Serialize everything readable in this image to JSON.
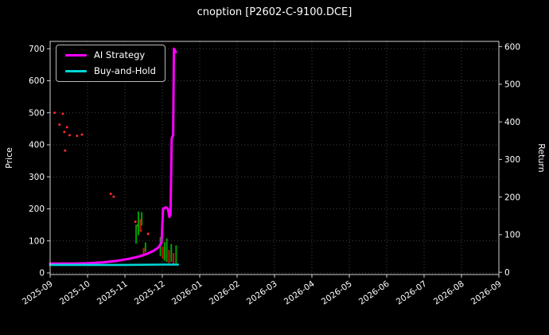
{
  "chart_data": {
    "type": "line",
    "title": "cnoption [P2602-C-9100.DCE]",
    "colors": {
      "background": "#000000",
      "text": "#ffffff",
      "grid": "#555555",
      "spine": "#cfcfcf",
      "signal_dot": "#ff2a2a"
    },
    "x_axis": {
      "range": [
        0,
        12
      ],
      "ticks": [
        {
          "v": 0,
          "label": "2025-09"
        },
        {
          "v": 1,
          "label": "2025-10"
        },
        {
          "v": 2,
          "label": "2025-11"
        },
        {
          "v": 3,
          "label": "2025-12"
        },
        {
          "v": 4,
          "label": "2026-01"
        },
        {
          "v": 5,
          "label": "2026-02"
        },
        {
          "v": 6,
          "label": "2026-03"
        },
        {
          "v": 7,
          "label": "2026-04"
        },
        {
          "v": 8,
          "label": "2026-05"
        },
        {
          "v": 9,
          "label": "2026-06"
        },
        {
          "v": 10,
          "label": "2026-07"
        },
        {
          "v": 11,
          "label": "2026-08"
        },
        {
          "v": 12,
          "label": "2026-09"
        }
      ]
    },
    "left_axis": {
      "label": "Price",
      "range": [
        -5,
        723
      ],
      "ticks": [
        0,
        100,
        200,
        300,
        400,
        500,
        600,
        700
      ]
    },
    "right_axis": {
      "label": "Return",
      "range": [
        -6,
        614
      ],
      "ticks": [
        0,
        100,
        200,
        300,
        400,
        500,
        600
      ]
    },
    "series": [
      {
        "name": "AI Strategy",
        "color": "#ff00ff",
        "width": 3,
        "axis": "left",
        "points": [
          [
            0,
            29
          ],
          [
            0.6,
            29
          ],
          [
            1.0,
            30
          ],
          [
            1.4,
            33
          ],
          [
            1.8,
            38
          ],
          [
            2.1,
            44
          ],
          [
            2.4,
            52
          ],
          [
            2.6,
            60
          ],
          [
            2.75,
            68
          ],
          [
            2.9,
            80
          ],
          [
            2.98,
            95
          ],
          [
            3.02,
            200
          ],
          [
            3.1,
            205
          ],
          [
            3.15,
            200
          ],
          [
            3.19,
            175
          ],
          [
            3.22,
            182
          ],
          [
            3.25,
            420
          ],
          [
            3.29,
            430
          ],
          [
            3.31,
            700
          ],
          [
            3.36,
            690
          ]
        ]
      },
      {
        "name": "Buy-and-Hold",
        "color": "#00d8d8",
        "width": 2.6,
        "axis": "left",
        "points": [
          [
            0,
            25
          ],
          [
            1.0,
            25
          ],
          [
            2.0,
            25
          ],
          [
            3.0,
            26
          ],
          [
            3.42,
            26
          ]
        ]
      }
    ],
    "markers": {
      "red_dots": [
        [
          0.12,
          500
        ],
        [
          0.25,
          463
        ],
        [
          0.34,
          497
        ],
        [
          0.38,
          440
        ],
        [
          0.45,
          455
        ],
        [
          0.52,
          430
        ],
        [
          0.4,
          382
        ],
        [
          0.72,
          428
        ],
        [
          0.85,
          432
        ],
        [
          1.62,
          247
        ],
        [
          1.7,
          238
        ],
        [
          2.28,
          160
        ],
        [
          2.34,
          148
        ],
        [
          2.42,
          132
        ],
        [
          2.62,
          122
        ]
      ],
      "bars": [
        {
          "x": 2.3,
          "low": 92,
          "high": 150,
          "color": "#00a000"
        },
        {
          "x": 2.36,
          "low": 118,
          "high": 192,
          "color": "#00a000"
        },
        {
          "x": 2.41,
          "low": 128,
          "high": 168,
          "color": "#cc1111"
        },
        {
          "x": 2.45,
          "low": 148,
          "high": 190,
          "color": "#00a000"
        },
        {
          "x": 2.5,
          "low": 58,
          "high": 78,
          "color": "#cc1111"
        },
        {
          "x": 2.55,
          "low": 65,
          "high": 95,
          "color": "#00a000"
        },
        {
          "x": 2.95,
          "low": 52,
          "high": 112,
          "color": "#00a000"
        },
        {
          "x": 3.01,
          "low": 44,
          "high": 82,
          "color": "#cc1111"
        },
        {
          "x": 3.06,
          "low": 38,
          "high": 96,
          "color": "#00a000"
        },
        {
          "x": 3.12,
          "low": 34,
          "high": 108,
          "color": "#00a000"
        },
        {
          "x": 3.18,
          "low": 30,
          "high": 72,
          "color": "#cc1111"
        },
        {
          "x": 3.24,
          "low": 34,
          "high": 90,
          "color": "#00a000"
        },
        {
          "x": 3.3,
          "low": 28,
          "high": 62,
          "color": "#cc1111"
        },
        {
          "x": 3.37,
          "low": 30,
          "high": 86,
          "color": "#00a000"
        }
      ]
    },
    "legend": {
      "position": "upper-left"
    }
  }
}
